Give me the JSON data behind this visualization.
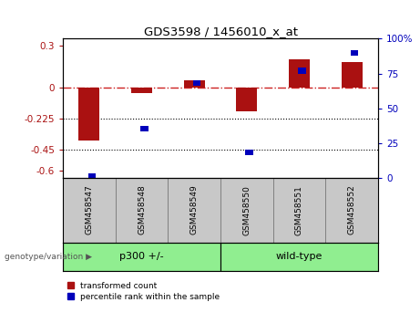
{
  "title": "GDS3598 / 1456010_x_at",
  "samples": [
    "GSM458547",
    "GSM458548",
    "GSM458549",
    "GSM458550",
    "GSM458551",
    "GSM458552"
  ],
  "red_values": [
    -0.38,
    -0.04,
    0.05,
    -0.175,
    0.2,
    0.18
  ],
  "blue_percentiles": [
    1,
    35,
    68,
    18,
    77,
    90
  ],
  "groups": [
    {
      "label": "p300 +/-",
      "color": "#90EE90"
    },
    {
      "label": "wild-type",
      "color": "#90EE90"
    }
  ],
  "ylim_left": [
    -0.65,
    0.35
  ],
  "ylim_right": [
    0,
    100
  ],
  "yticks_left": [
    -0.6,
    -0.45,
    -0.225,
    0.0,
    0.3
  ],
  "yticks_right": [
    0,
    25,
    50,
    75,
    100
  ],
  "red_color": "#AA1111",
  "blue_color": "#0000BB",
  "dashed_color": "#CC2222",
  "bg_color": "#FFFFFF",
  "plot_bg": "#FFFFFF",
  "sample_bg": "#C8C8C8",
  "group_label": "genotype/variation"
}
